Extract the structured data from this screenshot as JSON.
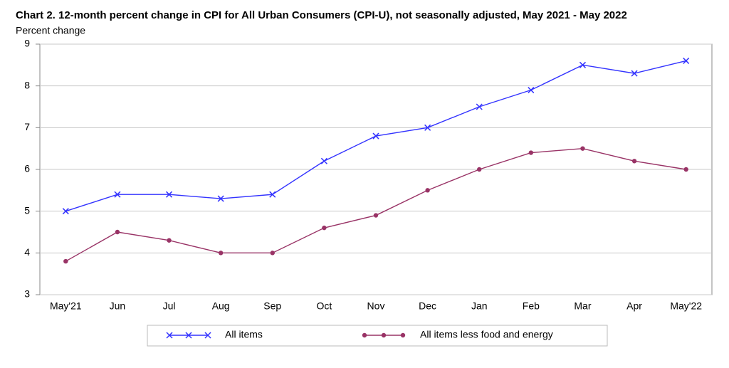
{
  "chart_data": {
    "type": "line",
    "title": "Chart 2. 12-month percent change in CPI for All Urban Consumers (CPI-U), not seasonally adjusted, May 2021 - May 2022",
    "y_label": "Percent change",
    "categories": [
      "May'21",
      "Jun",
      "Jul",
      "Aug",
      "Sep",
      "Oct",
      "Nov",
      "Dec",
      "Jan",
      "Feb",
      "Mar",
      "Apr",
      "May'22"
    ],
    "series": [
      {
        "name": "All items",
        "color": "#3333ff",
        "marker": "x",
        "values": [
          5.0,
          5.4,
          5.4,
          5.3,
          5.4,
          6.2,
          6.8,
          7.0,
          7.5,
          7.9,
          8.5,
          8.3,
          8.6
        ]
      },
      {
        "name": "All items less food and energy",
        "color": "#993366",
        "marker": "circle",
        "values": [
          3.8,
          4.5,
          4.3,
          4.0,
          4.0,
          4.6,
          4.9,
          5.5,
          6.0,
          6.4,
          6.5,
          6.2,
          6.0
        ]
      }
    ],
    "ylim": [
      3,
      9
    ],
    "yticks": [
      3,
      4,
      5,
      6,
      7,
      8,
      9
    ],
    "grid": true
  }
}
